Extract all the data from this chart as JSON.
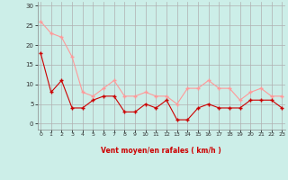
{
  "x": [
    0,
    1,
    2,
    3,
    4,
    5,
    6,
    7,
    8,
    9,
    10,
    11,
    12,
    13,
    14,
    15,
    16,
    17,
    18,
    19,
    20,
    21,
    22,
    23
  ],
  "wind_avg": [
    18,
    8,
    11,
    4,
    4,
    6,
    7,
    7,
    3,
    3,
    5,
    4,
    6,
    1,
    1,
    4,
    5,
    4,
    4,
    4,
    6,
    6,
    6,
    4
  ],
  "wind_gust": [
    26,
    23,
    22,
    17,
    8,
    7,
    9,
    11,
    7,
    7,
    8,
    7,
    7,
    5,
    9,
    9,
    11,
    9,
    9,
    6,
    8,
    9,
    7,
    7
  ],
  "avg_color": "#cc0000",
  "gust_color": "#ff9999",
  "bg_color": "#cceee8",
  "grid_color": "#b0b0b0",
  "xlabel": "Vent moyen/en rafales ( km/h )",
  "xlabel_color": "#cc0000",
  "ytick_labels": [
    "0",
    "5",
    "10",
    "15",
    "20",
    "25",
    "30"
  ],
  "ytick_vals": [
    0,
    5,
    10,
    15,
    20,
    25,
    30
  ],
  "ylim": [
    -1.5,
    31
  ],
  "xlim": [
    -0.3,
    23.3
  ]
}
